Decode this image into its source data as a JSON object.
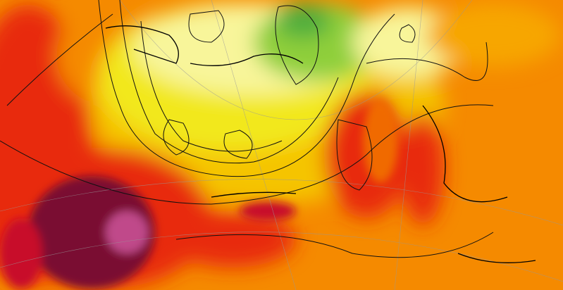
{
  "map": {
    "kind": "weather-field-with-contours",
    "palette": {
      "green_dark": "#4fae3c",
      "green": "#8fcf3a",
      "yellow_light": "#f8f59a",
      "yellow": "#f2e81a",
      "gold": "#f5c400",
      "orange_light": "#f7a600",
      "orange": "#f58a00",
      "orange_red": "#f06a00",
      "red": "#e82a10",
      "crimson": "#c8102a",
      "maroon": "#7a1030",
      "magenta": "#c04a8a",
      "contour": "#111111",
      "grid": "#999999"
    }
  }
}
